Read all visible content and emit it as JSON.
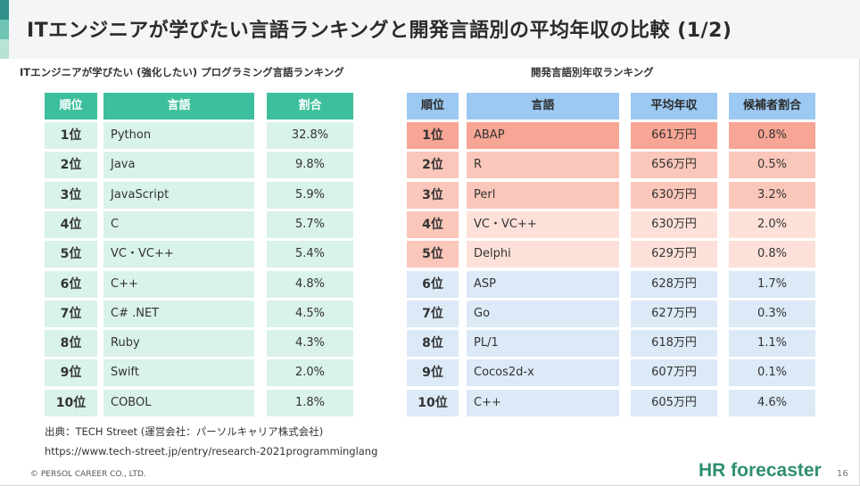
{
  "title": "ITエンジニアが学びたい言語ランキングと開発言語別の平均年収の比較 (1/2)",
  "left_table": {
    "title": "ITエンジニアが学びたい (強化したい) プログラミング言語ランキング",
    "headers": [
      "順位",
      "言語",
      "割合"
    ],
    "rows": [
      {
        "rank": "1位",
        "language": "Python",
        "share": "32.8%"
      },
      {
        "rank": "2位",
        "language": "Java",
        "share": "9.8%"
      },
      {
        "rank": "3位",
        "language": "JavaScript",
        "share": "5.9%"
      },
      {
        "rank": "4位",
        "language": "C",
        "share": "5.7%"
      },
      {
        "rank": "5位",
        "language": "VC・VC++",
        "share": "5.4%"
      },
      {
        "rank": "6位",
        "language": "C++",
        "share": "4.8%"
      },
      {
        "rank": "7位",
        "language": "C# .NET",
        "share": "4.5%"
      },
      {
        "rank": "8位",
        "language": "Ruby",
        "share": "4.3%"
      },
      {
        "rank": "9位",
        "language": "Swift",
        "share": "2.0%"
      },
      {
        "rank": "10位",
        "language": "COBOL",
        "share": "1.8%"
      }
    ]
  },
  "right_table": {
    "title": "開発言語別年収ランキング",
    "headers": [
      "順位",
      "言語",
      "平均年収",
      "候補者割合"
    ],
    "rows": [
      {
        "rank": "1位",
        "language": "ABAP",
        "salary": "661万円",
        "share": "0.8%"
      },
      {
        "rank": "2位",
        "language": "R",
        "salary": "656万円",
        "share": "0.5%"
      },
      {
        "rank": "3位",
        "language": "Perl",
        "salary": "630万円",
        "share": "3.2%"
      },
      {
        "rank": "4位",
        "language": "VC・VC++",
        "salary": "630万円",
        "share": "2.0%"
      },
      {
        "rank": "5位",
        "language": "Delphi",
        "salary": "629万円",
        "share": "0.8%"
      },
      {
        "rank": "6位",
        "language": "ASP",
        "salary": "628万円",
        "share": "1.7%"
      },
      {
        "rank": "7位",
        "language": "Go",
        "salary": "627万円",
        "share": "0.3%"
      },
      {
        "rank": "8位",
        "language": "PL/1",
        "salary": "618万円",
        "share": "1.1%"
      },
      {
        "rank": "9位",
        "language": "Cocos2d-x",
        "salary": "607万円",
        "share": "0.1%"
      },
      {
        "rank": "10位",
        "language": "C++",
        "salary": "605万円",
        "share": "4.6%"
      }
    ]
  },
  "source": {
    "line1": "出典：TECH Street (運営会社：パーソルキャリア株式会社)",
    "line2": "https://www.tech-street.jp/entry/research-2021programminglang"
  },
  "footer": {
    "copyright": "© PERSOL CAREER CO., LTD.",
    "brand": "HR forecaster",
    "page": "16"
  },
  "colors": {
    "left_header": "#3dbf9d",
    "left_body": "#d9f2ea",
    "right_header": "#9cc9f2",
    "right_top": "#f7a594",
    "right_mid": "#fbc7ba",
    "right_low": "#fde1d9",
    "right_blue": "#dce9f7",
    "brand": "#2f8f6e"
  }
}
